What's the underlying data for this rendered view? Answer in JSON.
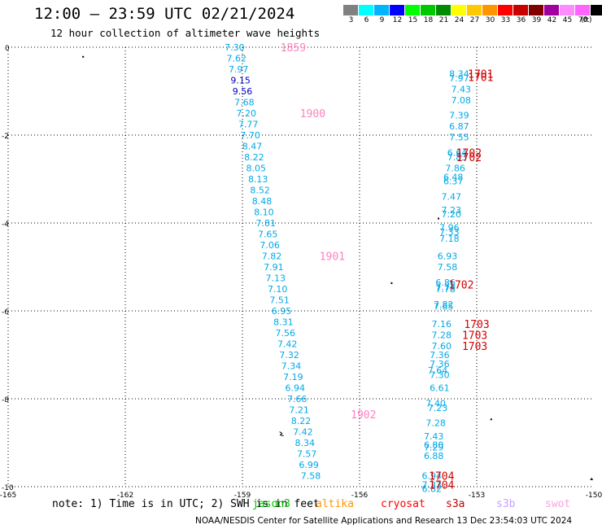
{
  "title": "12:00 – 23:59 UTC 02/21/2024",
  "subtitle": "12 hour collection of altimeter wave heights",
  "legend": {
    "units": "(ft)",
    "bins": [
      {
        "label": "3",
        "color": "#808080"
      },
      {
        "label": "6",
        "color": "#00ffff"
      },
      {
        "label": "9",
        "color": "#00b4ff"
      },
      {
        "label": "12",
        "color": "#0000ff"
      },
      {
        "label": "15",
        "color": "#00ff00"
      },
      {
        "label": "18",
        "color": "#00c800"
      },
      {
        "label": "21",
        "color": "#008c00"
      },
      {
        "label": "24",
        "color": "#ffff00"
      },
      {
        "label": "27",
        "color": "#ffc800"
      },
      {
        "label": "30",
        "color": "#ff9600"
      },
      {
        "label": "33",
        "color": "#ff0000"
      },
      {
        "label": "36",
        "color": "#c80000"
      },
      {
        "label": "39",
        "color": "#800000"
      },
      {
        "label": "42",
        "color": "#a000a0"
      },
      {
        "label": "45",
        "color": "#ff8cff"
      },
      {
        "label": "70",
        "color": "#ff64ff"
      },
      {
        "label": "",
        "color": "#000000"
      }
    ]
  },
  "axes": {
    "lon_ticks": [
      "-165",
      "-162",
      "-159",
      "-156",
      "-153",
      "-150"
    ],
    "lat_ticks": [
      "0",
      "-2",
      "-4",
      "-6",
      "-8",
      "-10"
    ],
    "lon_range": [
      -165,
      -150
    ],
    "lat_range": [
      -10,
      0
    ]
  },
  "colors": {
    "wave_light": "#00a8e8",
    "wave_dark": "#0000c0",
    "time_pink": "#ff80c0",
    "time_red": "#d40000"
  },
  "wave_labels": [
    {
      "lon": -159.2,
      "lat": 0.0,
      "text": "7.30",
      "c": "wave_light"
    },
    {
      "lon": -159.15,
      "lat": -0.25,
      "text": "7.62",
      "c": "wave_light"
    },
    {
      "lon": -159.1,
      "lat": -0.5,
      "text": "7.97",
      "c": "wave_light"
    },
    {
      "lon": -159.05,
      "lat": -0.75,
      "text": "9.15",
      "c": "wave_dark"
    },
    {
      "lon": -159.0,
      "lat": -1.0,
      "text": "9.56",
      "c": "wave_dark"
    },
    {
      "lon": -158.95,
      "lat": -1.25,
      "text": "7.68",
      "c": "wave_light"
    },
    {
      "lon": -158.9,
      "lat": -1.5,
      "text": "7.20",
      "c": "wave_light"
    },
    {
      "lon": -158.85,
      "lat": -1.75,
      "text": "7.77",
      "c": "wave_light"
    },
    {
      "lon": -158.8,
      "lat": -2.0,
      "text": "7.70",
      "c": "wave_light"
    },
    {
      "lon": -158.75,
      "lat": -2.25,
      "text": "8.47",
      "c": "wave_light"
    },
    {
      "lon": -158.7,
      "lat": -2.5,
      "text": "8.22",
      "c": "wave_light"
    },
    {
      "lon": -158.65,
      "lat": -2.75,
      "text": "8.05",
      "c": "wave_light"
    },
    {
      "lon": -158.6,
      "lat": -3.0,
      "text": "8.13",
      "c": "wave_light"
    },
    {
      "lon": -158.55,
      "lat": -3.25,
      "text": "8.52",
      "c": "wave_light"
    },
    {
      "lon": -158.5,
      "lat": -3.5,
      "text": "8.48",
      "c": "wave_light"
    },
    {
      "lon": -158.45,
      "lat": -3.75,
      "text": "8.10",
      "c": "wave_light"
    },
    {
      "lon": -158.4,
      "lat": -4.0,
      "text": "7.81",
      "c": "wave_light"
    },
    {
      "lon": -158.35,
      "lat": -4.25,
      "text": "7.65",
      "c": "wave_light"
    },
    {
      "lon": -158.3,
      "lat": -4.5,
      "text": "7.06",
      "c": "wave_light"
    },
    {
      "lon": -158.25,
      "lat": -4.75,
      "text": "7.82",
      "c": "wave_light"
    },
    {
      "lon": -158.2,
      "lat": -5.0,
      "text": "7.91",
      "c": "wave_light"
    },
    {
      "lon": -158.15,
      "lat": -5.25,
      "text": "7.13",
      "c": "wave_light"
    },
    {
      "lon": -158.1,
      "lat": -5.5,
      "text": "7.10",
      "c": "wave_light"
    },
    {
      "lon": -158.05,
      "lat": -5.75,
      "text": "7.51",
      "c": "wave_light"
    },
    {
      "lon": -158.0,
      "lat": -6.0,
      "text": "6.95",
      "c": "wave_light"
    },
    {
      "lon": -157.95,
      "lat": -6.25,
      "text": "8.31",
      "c": "wave_light"
    },
    {
      "lon": -157.9,
      "lat": -6.5,
      "text": "7.56",
      "c": "wave_light"
    },
    {
      "lon": -157.85,
      "lat": -6.75,
      "text": "7.42",
      "c": "wave_light"
    },
    {
      "lon": -157.8,
      "lat": -7.0,
      "text": "7.32",
      "c": "wave_light"
    },
    {
      "lon": -157.75,
      "lat": -7.25,
      "text": "7.34",
      "c": "wave_light"
    },
    {
      "lon": -157.7,
      "lat": -7.5,
      "text": "7.19",
      "c": "wave_light"
    },
    {
      "lon": -157.65,
      "lat": -7.75,
      "text": "6.94",
      "c": "wave_light"
    },
    {
      "lon": -157.6,
      "lat": -8.0,
      "text": "7.66",
      "c": "wave_light"
    },
    {
      "lon": -157.55,
      "lat": -8.25,
      "text": "7.21",
      "c": "wave_light"
    },
    {
      "lon": -157.5,
      "lat": -8.5,
      "text": "8.22",
      "c": "wave_light"
    },
    {
      "lon": -157.45,
      "lat": -8.75,
      "text": "7.42",
      "c": "wave_light"
    },
    {
      "lon": -157.4,
      "lat": -9.0,
      "text": "8.34",
      "c": "wave_light"
    },
    {
      "lon": -157.35,
      "lat": -9.25,
      "text": "7.57",
      "c": "wave_light"
    },
    {
      "lon": -157.3,
      "lat": -9.5,
      "text": "6.99",
      "c": "wave_light"
    },
    {
      "lon": -157.25,
      "lat": -9.75,
      "text": "7.58",
      "c": "wave_light"
    },
    {
      "lon": -153.45,
      "lat": -0.6,
      "text": "8.34",
      "c": "wave_light"
    },
    {
      "lon": -153.45,
      "lat": -0.7,
      "text": "7.97",
      "c": "wave_light"
    },
    {
      "lon": -153.4,
      "lat": -0.95,
      "text": "7.43",
      "c": "wave_light"
    },
    {
      "lon": -153.4,
      "lat": -1.2,
      "text": "7.08",
      "c": "wave_light"
    },
    {
      "lon": -153.45,
      "lat": -1.55,
      "text": "7.39",
      "c": "wave_light"
    },
    {
      "lon": -153.45,
      "lat": -1.8,
      "text": "6.87",
      "c": "wave_light"
    },
    {
      "lon": -153.45,
      "lat": -2.05,
      "text": "7.55",
      "c": "wave_light"
    },
    {
      "lon": -153.5,
      "lat": -2.4,
      "text": "6.64",
      "c": "wave_light"
    },
    {
      "lon": -153.5,
      "lat": -2.5,
      "text": "7.83",
      "c": "wave_light"
    },
    {
      "lon": -153.55,
      "lat": -2.75,
      "text": "7.86",
      "c": "wave_light"
    },
    {
      "lon": -153.6,
      "lat": -2.95,
      "text": "6.48",
      "c": "wave_light"
    },
    {
      "lon": -153.6,
      "lat": -3.05,
      "text": "6.37",
      "c": "wave_light"
    },
    {
      "lon": -153.65,
      "lat": -3.4,
      "text": "7.47",
      "c": "wave_light"
    },
    {
      "lon": -153.65,
      "lat": -3.7,
      "text": "7.23",
      "c": "wave_light"
    },
    {
      "lon": -153.65,
      "lat": -3.8,
      "text": "7.20",
      "c": "wave_light"
    },
    {
      "lon": -153.7,
      "lat": -4.1,
      "text": "7.96",
      "c": "wave_light"
    },
    {
      "lon": -153.7,
      "lat": -4.2,
      "text": "7.33",
      "c": "wave_light"
    },
    {
      "lon": -153.7,
      "lat": -4.35,
      "text": "7.18",
      "c": "wave_light"
    },
    {
      "lon": -153.75,
      "lat": -4.75,
      "text": "6.93",
      "c": "wave_light"
    },
    {
      "lon": -153.75,
      "lat": -5.0,
      "text": "7.58",
      "c": "wave_light"
    },
    {
      "lon": -153.8,
      "lat": -5.35,
      "text": "6.86",
      "c": "wave_light"
    },
    {
      "lon": -153.8,
      "lat": -5.45,
      "text": "7.73",
      "c": "wave_light"
    },
    {
      "lon": -153.8,
      "lat": -5.5,
      "text": "7.78",
      "c": "wave_light"
    },
    {
      "lon": -153.85,
      "lat": -5.85,
      "text": "7.82",
      "c": "wave_light"
    },
    {
      "lon": -153.85,
      "lat": -5.9,
      "text": "7.65",
      "c": "wave_light"
    },
    {
      "lon": -153.9,
      "lat": -6.3,
      "text": "7.16",
      "c": "wave_light"
    },
    {
      "lon": -153.9,
      "lat": -6.55,
      "text": "7.28",
      "c": "wave_light"
    },
    {
      "lon": -153.9,
      "lat": -6.8,
      "text": "7.60",
      "c": "wave_light"
    },
    {
      "lon": -153.95,
      "lat": -7.0,
      "text": "7.36",
      "c": "wave_light"
    },
    {
      "lon": -153.95,
      "lat": -7.2,
      "text": "7.36",
      "c": "wave_light"
    },
    {
      "lon": -154.0,
      "lat": -7.35,
      "text": "7.64",
      "c": "wave_light"
    },
    {
      "lon": -153.95,
      "lat": -7.45,
      "text": "7.30",
      "c": "wave_light"
    },
    {
      "lon": -153.95,
      "lat": -7.75,
      "text": "6.61",
      "c": "wave_light"
    },
    {
      "lon": -154.05,
      "lat": -8.1,
      "text": "7.40",
      "c": "wave_light"
    },
    {
      "lon": -154.0,
      "lat": -8.2,
      "text": "7.23",
      "c": "wave_light"
    },
    {
      "lon": -154.05,
      "lat": -8.55,
      "text": "7.28",
      "c": "wave_light"
    },
    {
      "lon": -154.1,
      "lat": -8.85,
      "text": "7.43",
      "c": "wave_light"
    },
    {
      "lon": -154.1,
      "lat": -9.05,
      "text": "6.80",
      "c": "wave_light"
    },
    {
      "lon": -154.1,
      "lat": -9.1,
      "text": "7.29",
      "c": "wave_light"
    },
    {
      "lon": -154.1,
      "lat": -9.3,
      "text": "6.88",
      "c": "wave_light"
    },
    {
      "lon": -154.15,
      "lat": -9.75,
      "text": "6.94",
      "c": "wave_light"
    },
    {
      "lon": -154.15,
      "lat": -9.95,
      "text": "7.33",
      "c": "wave_light"
    },
    {
      "lon": -154.15,
      "lat": -10.05,
      "text": "6.82",
      "c": "wave_light"
    }
  ],
  "time_labels": [
    {
      "lon": -157.7,
      "lat": 0.0,
      "text": "1859",
      "c": "time_pink"
    },
    {
      "lon": -157.2,
      "lat": -1.5,
      "text": "1900",
      "c": "time_pink"
    },
    {
      "lon": -156.7,
      "lat": -4.75,
      "text": "1901",
      "c": "time_pink"
    },
    {
      "lon": -155.9,
      "lat": -8.35,
      "text": "1902",
      "c": "time_pink"
    },
    {
      "lon": -152.9,
      "lat": -0.6,
      "text": "1701",
      "c": "time_red"
    },
    {
      "lon": -152.9,
      "lat": -0.68,
      "text": "1701",
      "c": "time_red"
    },
    {
      "lon": -153.2,
      "lat": -2.4,
      "text": "1702",
      "c": "time_red"
    },
    {
      "lon": -153.2,
      "lat": -2.5,
      "text": "1702",
      "c": "time_red"
    },
    {
      "lon": -153.4,
      "lat": -5.4,
      "text": "1702",
      "c": "time_red"
    },
    {
      "lon": -153.0,
      "lat": -6.3,
      "text": "1703",
      "c": "time_red"
    },
    {
      "lon": -153.05,
      "lat": -6.55,
      "text": "1703",
      "c": "time_red"
    },
    {
      "lon": -153.05,
      "lat": -6.8,
      "text": "1703",
      "c": "time_red"
    },
    {
      "lon": -153.9,
      "lat": -9.75,
      "text": "1704",
      "c": "time_red"
    },
    {
      "lon": -153.9,
      "lat": -9.95,
      "text": "1704",
      "c": "time_red"
    }
  ],
  "note": "note: 1) Time is in UTC; 2) SWH is in feet",
  "satellites": [
    {
      "name": "jason3",
      "color": "#00c800"
    },
    {
      "name": "altika",
      "color": "#ff9600"
    },
    {
      "name": "cryosat",
      "color": "#ff0000"
    },
    {
      "name": "s3a",
      "color": "#c80000"
    },
    {
      "name": "s3b",
      "color": "#c8a0ff"
    },
    {
      "name": "swot",
      "color": "#ffa0e0"
    }
  ],
  "credit": "NOAA/NESDIS Center for Satellite Applications and Research   13 Dec 23:54:03 UTC 2024"
}
